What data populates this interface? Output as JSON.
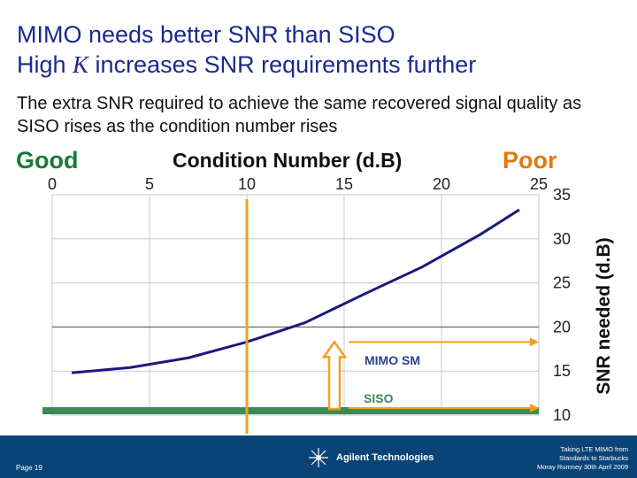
{
  "header": {
    "title_line1": "MIMO needs better SNR than SISO",
    "title_line2_pre": "High ",
    "title_line2_k": "K",
    "title_line2_post": " increases SNR requirements further",
    "subtitle": "The extra SNR required to achieve the same recovered signal quality as SISO rises as the condition number rises"
  },
  "labels": {
    "good": "Good",
    "poor": "Poor"
  },
  "colors": {
    "title": "#1a2a8f",
    "curve": "#1a1a7a",
    "siso": "#3c8a55",
    "marker": "#f0a020",
    "good": "#1a7a35",
    "poor": "#e07a10"
  },
  "chart_data": {
    "type": "line",
    "xlabel": "Condition Number (d.B)",
    "ylabel": "SNR needed (d.B)",
    "xlim": [
      0,
      25
    ],
    "ylim": [
      10,
      35
    ],
    "x_ticks": [
      "0",
      "5",
      "10",
      "15",
      "20",
      "25"
    ],
    "y_ticks": [
      "35",
      "30",
      "25",
      "20",
      "15",
      "10"
    ],
    "x_axis_position": "top",
    "y_axis_position": "right",
    "grid": true,
    "series": [
      {
        "name": "MIMO SM",
        "x": [
          1,
          4,
          7,
          10,
          13,
          16,
          19,
          22,
          24
        ],
        "y": [
          14.8,
          15.4,
          16.5,
          18.3,
          20.5,
          23.7,
          26.8,
          30.5,
          33.3
        ]
      },
      {
        "name": "SISO",
        "x": [
          -0.5,
          25
        ],
        "y": [
          10.5,
          10.5
        ]
      }
    ],
    "annotations": [
      {
        "type": "vertical_line",
        "x": 10,
        "label": ""
      },
      {
        "type": "arrow",
        "x": 14.5,
        "from_y": 10.7,
        "to_y": 18.3,
        "label": ""
      }
    ]
  },
  "footer": {
    "page": "Page 19",
    "company": "Agilent Technologies",
    "note_line1": "Taking LTE MIMO from",
    "note_line2": "Standards to Starbucks",
    "note_line3": "Moray Rumney 30th April 2009"
  }
}
